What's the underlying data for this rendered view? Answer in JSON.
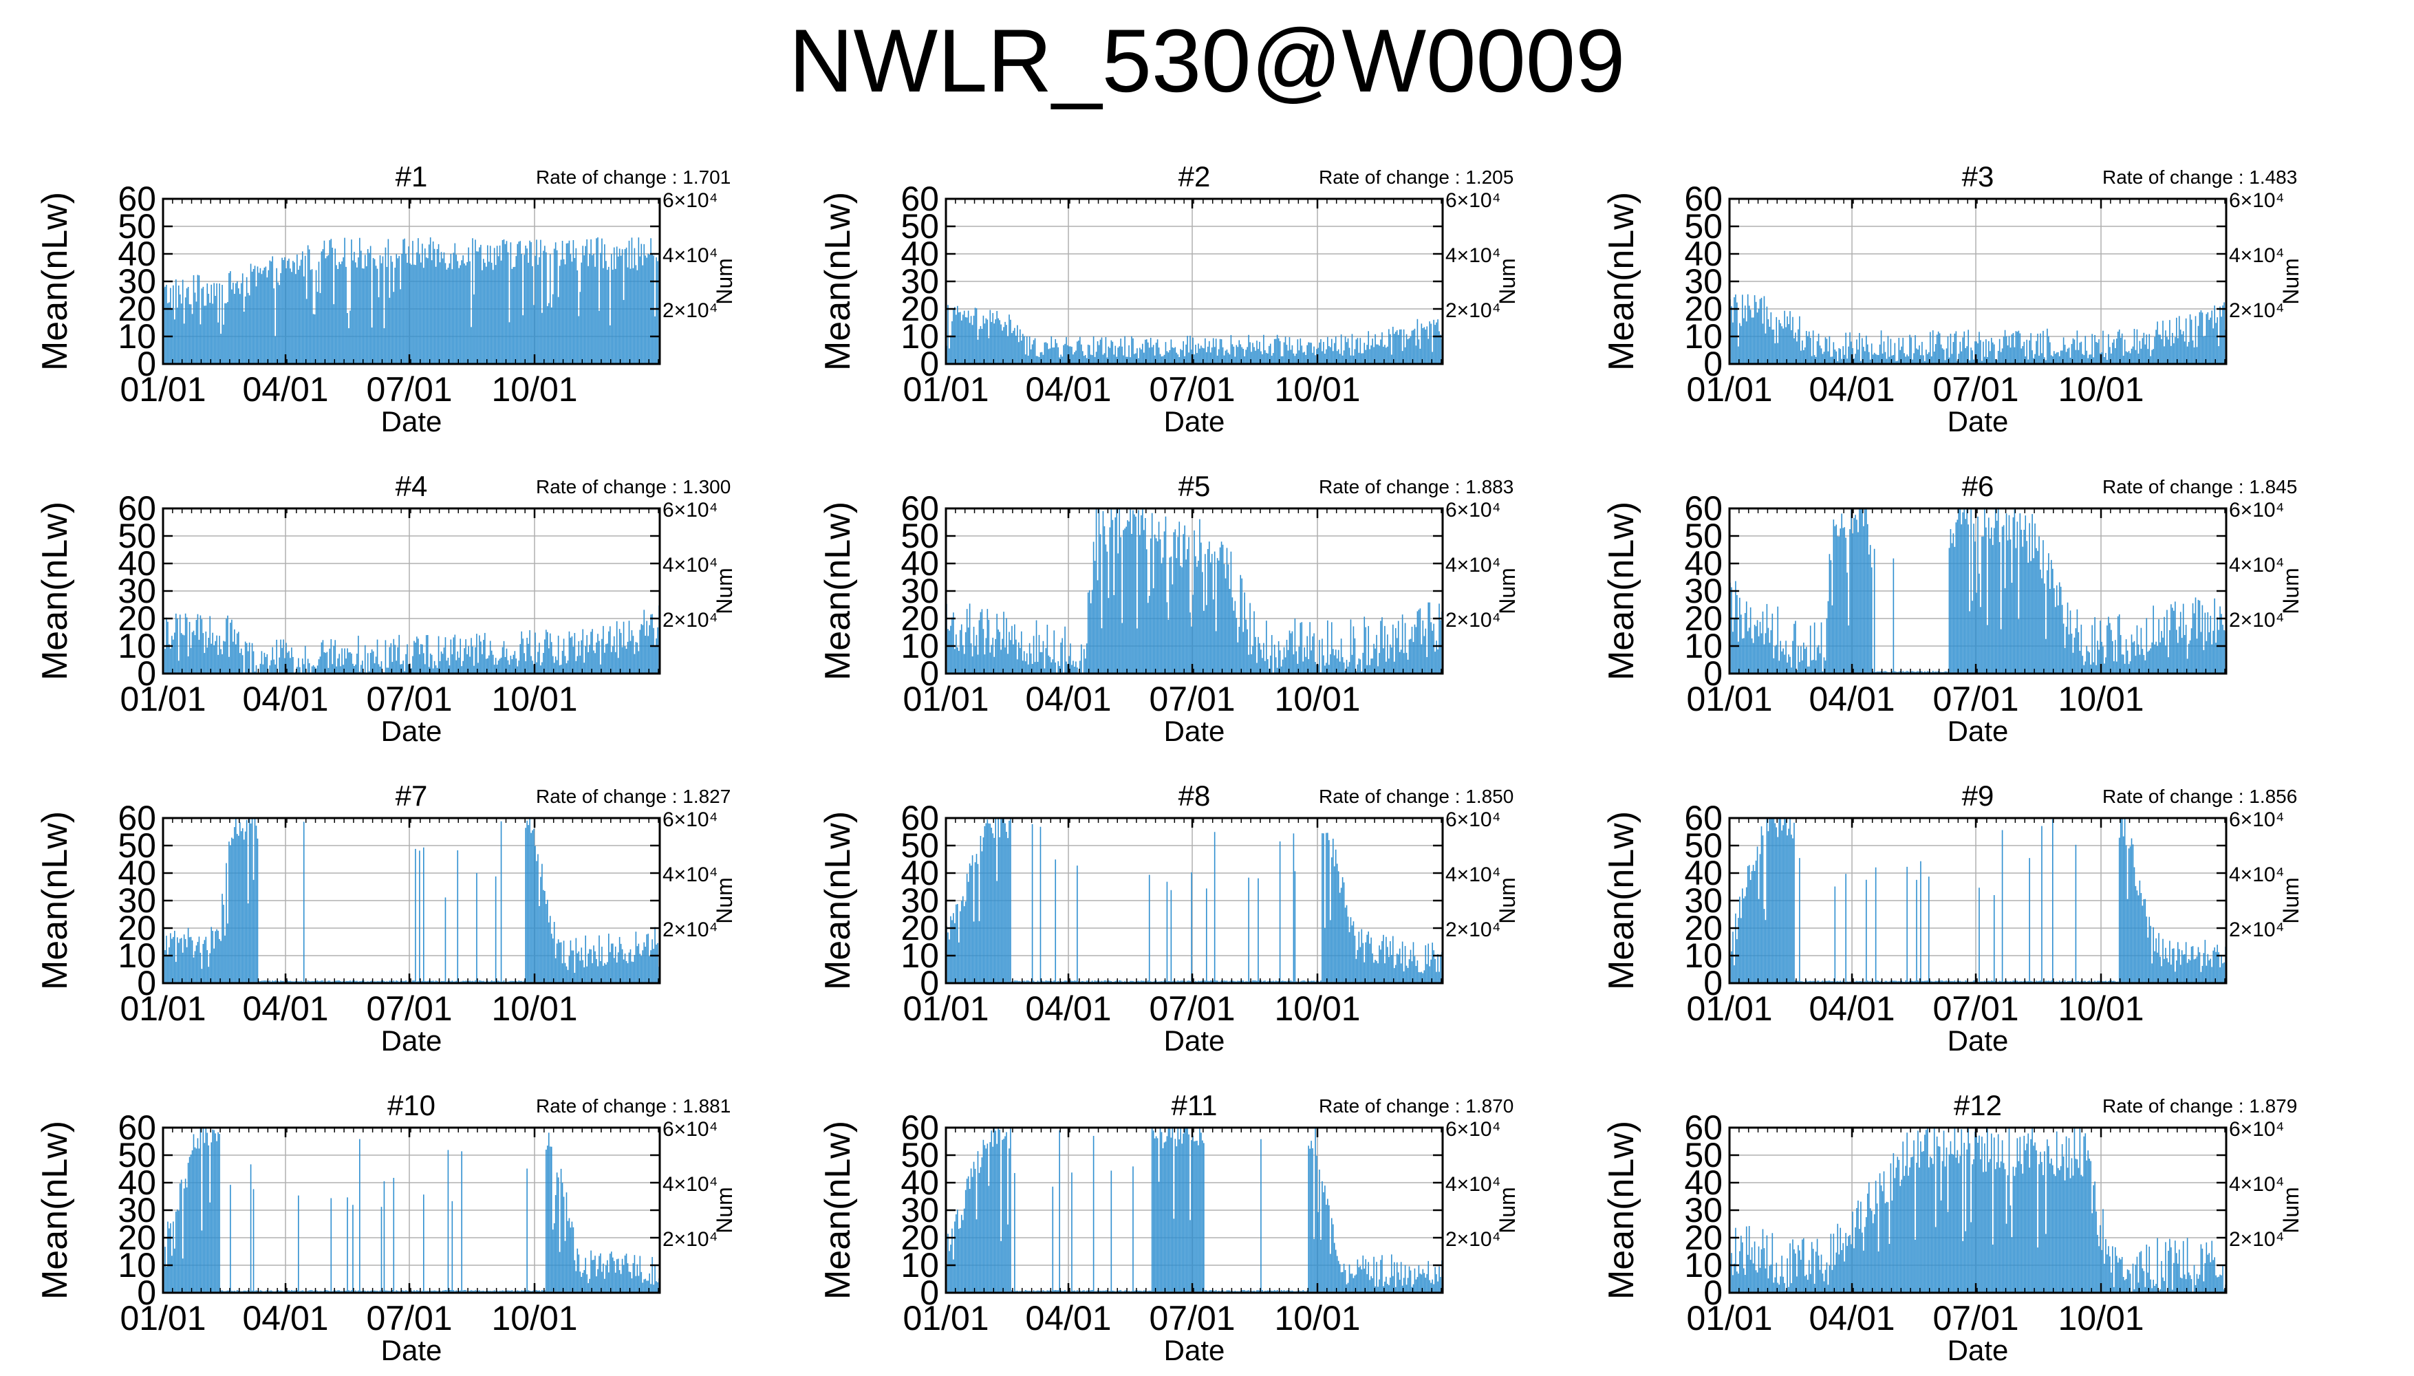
{
  "title": "NWLR_530@W0009",
  "common": {
    "ylabel_left": "Mean(nLw)",
    "ylabel_right": "Num",
    "xlabel": "Date",
    "yticks_left": [
      "0",
      "10",
      "20",
      "30",
      "40",
      "50",
      "60"
    ],
    "yticks_right": [
      "2×10⁴",
      "4×10⁴",
      "6×10⁴"
    ],
    "xticks": [
      "01/01",
      "04/01",
      "07/01",
      "10/01"
    ],
    "series_color": "#2f8fd0",
    "axis_color": "#000000",
    "grid_color": "#b0b0b0"
  },
  "chart_data": [
    {
      "type": "bar",
      "title": "#1",
      "rate_label": "Rate of change : 1.701",
      "x_range": [
        "01/01",
        "12/31"
      ],
      "ylim": [
        0,
        60
      ],
      "y2lim": [
        0,
        60000
      ],
      "grid": true,
      "profile": [
        [
          0,
          25
        ],
        [
          50,
          28
        ],
        [
          120,
          40
        ],
        [
          250,
          40
        ],
        [
          365,
          40
        ]
      ],
      "noise": 6,
      "gaps": []
    },
    {
      "type": "bar",
      "title": "#2",
      "rate_label": "Rate of change : 1.205",
      "x_range": [
        "01/01",
        "12/31"
      ],
      "ylim": [
        0,
        60
      ],
      "y2lim": [
        0,
        60000
      ],
      "grid": true,
      "profile": [
        [
          0,
          18
        ],
        [
          45,
          15
        ],
        [
          60,
          6
        ],
        [
          300,
          7
        ],
        [
          340,
          12
        ],
        [
          365,
          14
        ]
      ],
      "noise": 4,
      "gaps": []
    },
    {
      "type": "bar",
      "title": "#3",
      "rate_label": "Rate of change : 1.483",
      "x_range": [
        "01/01",
        "12/31"
      ],
      "ylim": [
        0,
        60
      ],
      "y2lim": [
        0,
        60000
      ],
      "grid": true,
      "profile": [
        [
          0,
          20
        ],
        [
          40,
          18
        ],
        [
          60,
          7
        ],
        [
          300,
          7
        ],
        [
          340,
          14
        ],
        [
          365,
          18
        ]
      ],
      "noise": 6,
      "gaps": []
    },
    {
      "type": "bar",
      "title": "#4",
      "rate_label": "Rate of change : 1.300",
      "x_range": [
        "01/01",
        "12/31"
      ],
      "ylim": [
        0,
        60
      ],
      "y2lim": [
        0,
        60000
      ],
      "grid": true,
      "profile": [
        [
          0,
          15
        ],
        [
          50,
          15
        ],
        [
          60,
          5
        ],
        [
          200,
          8
        ],
        [
          320,
          10
        ],
        [
          365,
          20
        ]
      ],
      "noise": 7,
      "gaps": []
    },
    {
      "type": "bar",
      "title": "#5",
      "rate_label": "Rate of change : 1.883",
      "x_range": [
        "01/01",
        "12/31"
      ],
      "ylim": [
        0,
        60
      ],
      "y2lim": [
        0,
        60000
      ],
      "grid": true,
      "profile": [
        [
          0,
          18
        ],
        [
          50,
          12
        ],
        [
          100,
          6
        ],
        [
          110,
          55
        ],
        [
          200,
          45
        ],
        [
          230,
          10
        ],
        [
          300,
          10
        ],
        [
          365,
          18
        ]
      ],
      "noise": 10,
      "gaps": []
    },
    {
      "type": "bar",
      "title": "#6",
      "rate_label": "Rate of change : 1.845",
      "x_range": [
        "01/01",
        "12/31"
      ],
      "ylim": [
        0,
        60
      ],
      "y2lim": [
        0,
        60000
      ],
      "grid": true,
      "profile": [
        [
          0,
          25
        ],
        [
          50,
          10
        ],
        [
          70,
          10
        ],
        [
          75,
          58
        ],
        [
          100,
          58
        ],
        [
          120,
          5
        ],
        [
          170,
          58
        ],
        [
          220,
          50
        ],
        [
          260,
          10
        ],
        [
          365,
          20
        ]
      ],
      "noise": 10,
      "gaps": [
        [
          105,
          160
        ]
      ]
    },
    {
      "type": "bar",
      "title": "#7",
      "rate_label": "Rate of change : 1.827",
      "x_range": [
        "01/01",
        "12/31"
      ],
      "ylim": [
        0,
        60
      ],
      "y2lim": [
        0,
        60000
      ],
      "grid": true,
      "profile": [
        [
          0,
          15
        ],
        [
          40,
          15
        ],
        [
          50,
          58
        ],
        [
          65,
          58
        ],
        [
          270,
          58
        ],
        [
          290,
          10
        ],
        [
          365,
          15
        ]
      ],
      "noise": 6,
      "gaps": [
        [
          70,
          265
        ]
      ]
    },
    {
      "type": "bar",
      "title": "#8",
      "rate_label": "Rate of change : 1.850",
      "x_range": [
        "01/01",
        "12/31"
      ],
      "ylim": [
        0,
        60
      ],
      "y2lim": [
        0,
        60000
      ],
      "grid": true,
      "profile": [
        [
          0,
          15
        ],
        [
          30,
          58
        ],
        [
          45,
          58
        ],
        [
          280,
          58
        ],
        [
          300,
          15
        ],
        [
          365,
          8
        ]
      ],
      "noise": 6,
      "gaps": [
        [
          48,
          275
        ]
      ]
    },
    {
      "type": "bar",
      "title": "#9",
      "rate_label": "Rate of change : 1.856",
      "x_range": [
        "01/01",
        "12/31"
      ],
      "ylim": [
        0,
        60
      ],
      "y2lim": [
        0,
        60000
      ],
      "grid": true,
      "profile": [
        [
          0,
          15
        ],
        [
          25,
          58
        ],
        [
          45,
          58
        ],
        [
          290,
          58
        ],
        [
          310,
          15
        ],
        [
          365,
          8
        ]
      ],
      "noise": 6,
      "gaps": [
        [
          48,
          285
        ]
      ]
    },
    {
      "type": "bar",
      "title": "#10",
      "rate_label": "Rate of change : 1.881",
      "x_range": [
        "01/01",
        "12/31"
      ],
      "ylim": [
        0,
        60
      ],
      "y2lim": [
        0,
        60000
      ],
      "grid": true,
      "profile": [
        [
          0,
          15
        ],
        [
          25,
          58
        ],
        [
          40,
          58
        ],
        [
          285,
          58
        ],
        [
          305,
          10
        ],
        [
          365,
          8
        ]
      ],
      "noise": 6,
      "gaps": [
        [
          42,
          280
        ]
      ]
    },
    {
      "type": "bar",
      "title": "#11",
      "rate_label": "Rate of change : 1.870",
      "x_range": [
        "01/01",
        "12/31"
      ],
      "ylim": [
        0,
        60
      ],
      "y2lim": [
        0,
        60000
      ],
      "grid": true,
      "profile": [
        [
          0,
          15
        ],
        [
          30,
          58
        ],
        [
          45,
          58
        ],
        [
          270,
          58
        ],
        [
          290,
          8
        ],
        [
          365,
          8
        ]
      ],
      "noise": 6,
      "gaps": [
        [
          48,
          150
        ],
        [
          190,
          265
        ]
      ]
    },
    {
      "type": "bar",
      "title": "#12",
      "rate_label": "Rate of change : 1.879",
      "x_range": [
        "01/01",
        "12/31"
      ],
      "ylim": [
        0,
        60
      ],
      "y2lim": [
        0,
        60000
      ],
      "grid": true,
      "profile": [
        [
          0,
          18
        ],
        [
          40,
          10
        ],
        [
          70,
          10
        ],
        [
          140,
          55
        ],
        [
          260,
          50
        ],
        [
          280,
          10
        ],
        [
          365,
          10
        ]
      ],
      "noise": 10,
      "gaps": []
    }
  ]
}
